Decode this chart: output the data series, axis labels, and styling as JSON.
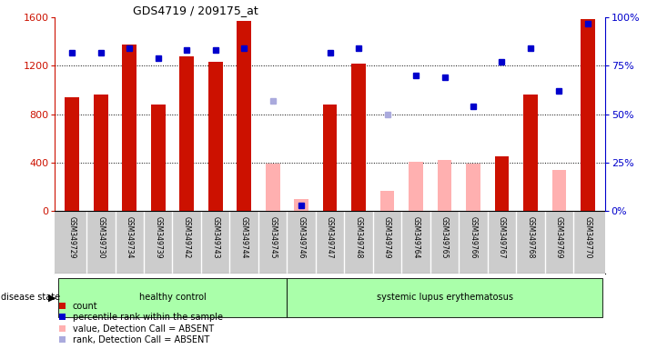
{
  "title": "GDS4719 / 209175_at",
  "samples": [
    "GSM349729",
    "GSM349730",
    "GSM349734",
    "GSM349739",
    "GSM349742",
    "GSM349743",
    "GSM349744",
    "GSM349745",
    "GSM349746",
    "GSM349747",
    "GSM349748",
    "GSM349749",
    "GSM349764",
    "GSM349765",
    "GSM349766",
    "GSM349767",
    "GSM349768",
    "GSM349769",
    "GSM349770"
  ],
  "counts": [
    940,
    960,
    1380,
    880,
    1280,
    1230,
    1570,
    null,
    null,
    880,
    1220,
    null,
    null,
    null,
    null,
    450,
    960,
    null,
    1590
  ],
  "absent_values": [
    null,
    null,
    null,
    null,
    null,
    null,
    null,
    390,
    100,
    null,
    null,
    170,
    410,
    420,
    390,
    null,
    null,
    340,
    null
  ],
  "percentile_ranks": [
    82,
    82,
    84,
    79,
    83,
    83,
    84,
    null,
    3,
    82,
    84,
    null,
    70,
    69,
    54,
    77,
    84,
    62,
    97
  ],
  "absent_ranks": [
    null,
    null,
    null,
    null,
    null,
    null,
    null,
    57,
    null,
    null,
    null,
    50,
    null,
    null,
    null,
    null,
    null,
    null,
    null
  ],
  "healthy_control_count": 8,
  "ylim_left": [
    0,
    1600
  ],
  "ylim_right": [
    0,
    100
  ],
  "yticks_left": [
    0,
    400,
    800,
    1200,
    1600
  ],
  "yticks_right": [
    0,
    25,
    50,
    75,
    100
  ],
  "bar_color": "#cc1100",
  "absent_bar_color": "#ffb0b0",
  "rank_color": "#0000cc",
  "absent_rank_color": "#aaaadd",
  "healthy_bg": "#aaffaa",
  "lupus_bg": "#aaffaa",
  "label_bg": "#cccccc",
  "label_sep": "#ffffff",
  "bar_width": 0.5
}
